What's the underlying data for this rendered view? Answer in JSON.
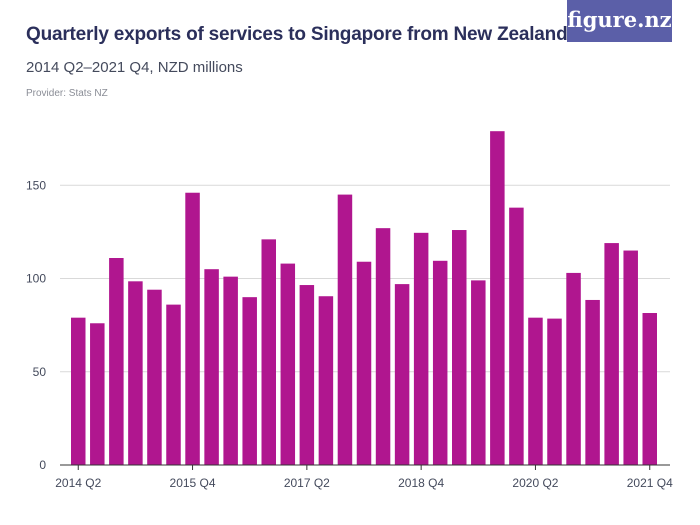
{
  "header": {
    "title": "Quarterly exports of services to Singapore from New Zealand",
    "subtitle": "2014 Q2–2021 Q4, NZD millions",
    "provider": "Provider: Stats NZ",
    "logo_text": "figure.nz"
  },
  "colors": {
    "bar": "#b0168f",
    "grid": "#d9d9d9",
    "axis": "#333333"
  },
  "chart_data": {
    "type": "bar",
    "title": "Quarterly exports of services to Singapore from New Zealand",
    "subtitle": "2014 Q2–2021 Q4, NZD millions",
    "xlabel": "",
    "ylabel": "",
    "ylim": [
      0,
      185
    ],
    "yticks": [
      0,
      50,
      100,
      150
    ],
    "xtick_labels": [
      {
        "index": 0,
        "label": "2014 Q2"
      },
      {
        "index": 6,
        "label": "2015 Q4"
      },
      {
        "index": 12,
        "label": "2017 Q2"
      },
      {
        "index": 18,
        "label": "2018 Q4"
      },
      {
        "index": 24,
        "label": "2020 Q2"
      },
      {
        "index": 30,
        "label": "2021 Q4"
      }
    ],
    "categories": [
      "2014 Q2",
      "2014 Q3",
      "2014 Q4",
      "2015 Q1",
      "2015 Q2",
      "2015 Q3",
      "2015 Q4",
      "2016 Q1",
      "2016 Q2",
      "2016 Q3",
      "2016 Q4",
      "2017 Q1",
      "2017 Q2",
      "2017 Q3",
      "2017 Q4",
      "2018 Q1",
      "2018 Q2",
      "2018 Q3",
      "2018 Q4",
      "2019 Q1",
      "2019 Q2",
      "2019 Q3",
      "2019 Q4",
      "2020 Q1",
      "2020 Q2",
      "2020 Q3",
      "2020 Q4",
      "2021 Q1",
      "2021 Q2",
      "2021 Q3",
      "2021 Q4"
    ],
    "values": [
      79,
      76,
      111,
      98.5,
      94,
      86,
      146,
      105,
      101,
      90,
      121,
      108,
      96.5,
      90.5,
      145,
      109,
      127,
      97,
      124.5,
      109.5,
      126,
      99,
      179,
      138,
      79,
      78.5,
      103,
      88.5,
      119,
      115,
      81.5
    ],
    "grid": true,
    "legend": "none"
  }
}
